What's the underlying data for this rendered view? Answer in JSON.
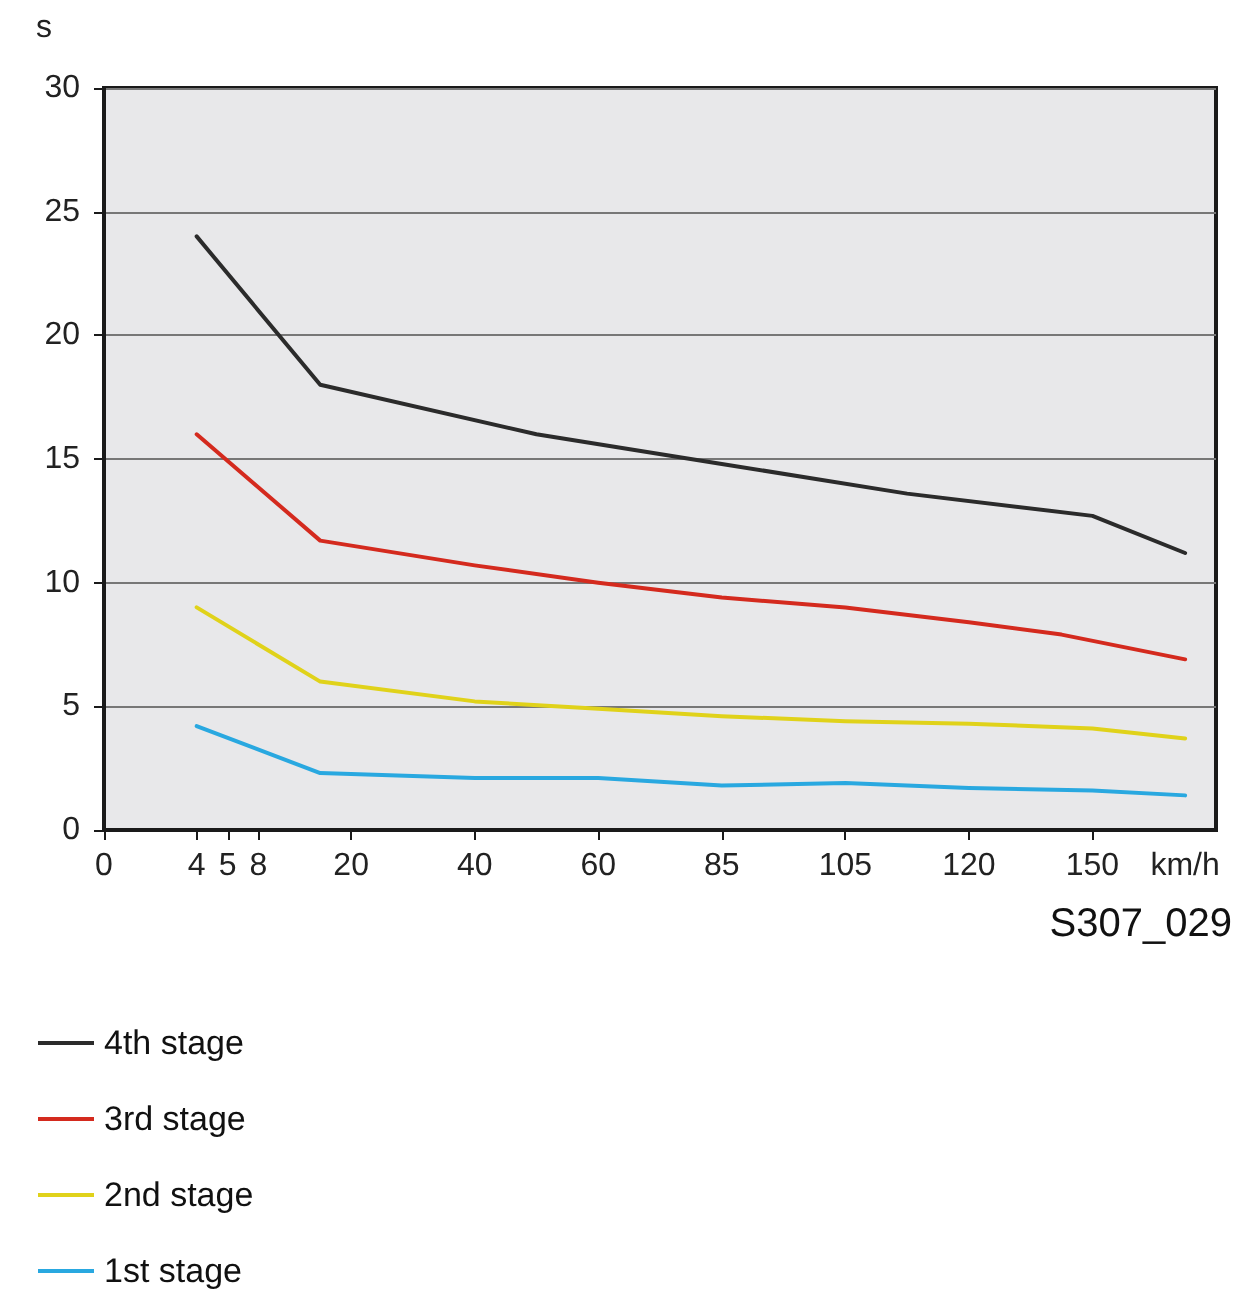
{
  "chart_data": {
    "type": "line",
    "ylabel": "s",
    "xlabel": "km/h",
    "categories": [
      "0",
      null,
      null,
      "4",
      "5",
      "8",
      null,
      null,
      "20",
      null,
      null,
      null,
      "40",
      null,
      null,
      null,
      "60",
      null,
      null,
      null,
      "85",
      null,
      null,
      null,
      "105",
      null,
      null,
      null,
      "120",
      null,
      null,
      null,
      "150",
      null,
      null,
      null,
      null
    ],
    "series": [
      {
        "name": "4th stage",
        "color": "#2b2b2b",
        "values": [
          null,
          null,
          null,
          24,
          null,
          null,
          null,
          18,
          null,
          null,
          null,
          null,
          null,
          null,
          16,
          null,
          null,
          null,
          null,
          null,
          14.8,
          null,
          null,
          null,
          null,
          null,
          13.6,
          null,
          null,
          null,
          null,
          null,
          12.7,
          null,
          null,
          11.2,
          null
        ]
      },
      {
        "name": "3rd stage",
        "color": "#d42a1e",
        "values": [
          null,
          null,
          null,
          16,
          null,
          null,
          null,
          11.7,
          null,
          null,
          null,
          null,
          10.7,
          null,
          null,
          null,
          10,
          null,
          null,
          null,
          9.4,
          null,
          null,
          null,
          9,
          null,
          null,
          null,
          8.4,
          null,
          null,
          7.9,
          null,
          null,
          null,
          6.9,
          null
        ]
      },
      {
        "name": "2nd stage",
        "color": "#e0d21a",
        "values": [
          null,
          null,
          null,
          9,
          null,
          null,
          null,
          6,
          null,
          null,
          null,
          null,
          5.2,
          null,
          null,
          null,
          4.9,
          null,
          null,
          null,
          4.6,
          null,
          null,
          null,
          4.4,
          null,
          null,
          null,
          4.3,
          null,
          null,
          null,
          4.1,
          null,
          null,
          3.7,
          null
        ]
      },
      {
        "name": "1st stage",
        "color": "#29a8e0",
        "values": [
          null,
          null,
          null,
          4.2,
          null,
          null,
          null,
          2.3,
          null,
          null,
          null,
          null,
          2.1,
          null,
          null,
          null,
          2.1,
          null,
          null,
          null,
          1.8,
          null,
          null,
          null,
          1.9,
          null,
          null,
          null,
          1.7,
          null,
          null,
          null,
          1.6,
          null,
          null,
          1.4,
          null
        ]
      }
    ],
    "ylim": [
      0,
      30
    ],
    "yticks": [
      0,
      5,
      10,
      15,
      20,
      25,
      30
    ],
    "grid": "y",
    "legend": "bottom left",
    "marker": "none",
    "line_style": "solid",
    "annotations": [
      "S307_029"
    ]
  }
}
